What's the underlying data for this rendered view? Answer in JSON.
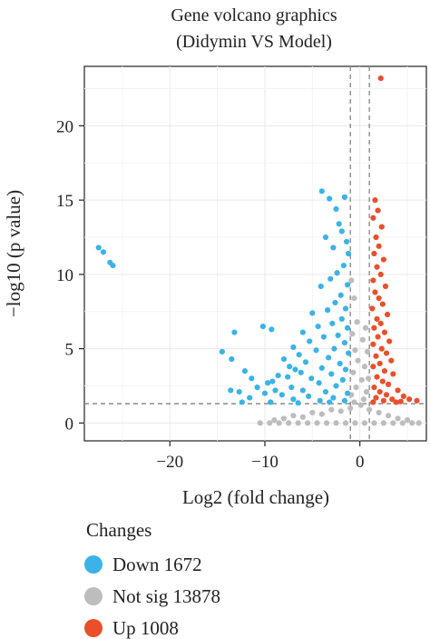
{
  "chart_data": {
    "type": "scatter",
    "title": "Gene volcano graphics",
    "subtitle": "(Didymin VS Model)",
    "xlabel": "Log2 (fold change)",
    "ylabel": "−log10 (p value)",
    "xlim": [
      -29,
      7
    ],
    "ylim": [
      -1.2,
      24
    ],
    "xticks": [
      -20,
      -10,
      0
    ],
    "xtick_labels": [
      "−20",
      "−10",
      "0"
    ],
    "yticks": [
      0,
      5,
      10,
      15,
      20
    ],
    "ytick_labels": [
      "0",
      "5",
      "10",
      "15",
      "20"
    ],
    "grid": true,
    "thresholds": {
      "log2fc": [
        -1,
        1
      ],
      "neg_log10_p": 1.3
    },
    "legend": {
      "title": "Changes",
      "position": "bottom-left",
      "entries": [
        {
          "label": "Down 1672",
          "color": "#3BB3E6"
        },
        {
          "label": "Not sig 13878",
          "color": "#BDBDBD"
        },
        {
          "label": "Up 1008",
          "color": "#E9502A"
        }
      ]
    },
    "series": [
      {
        "name": "Down",
        "color": "#3BB3E6",
        "points": [
          [
            -27.5,
            11.8
          ],
          [
            -27.0,
            11.5
          ],
          [
            -26.3,
            10.8
          ],
          [
            -26.0,
            10.6
          ],
          [
            -10.2,
            6.5
          ],
          [
            -9.3,
            6.3
          ],
          [
            -13.2,
            6.1
          ],
          [
            -14.5,
            4.8
          ],
          [
            -13.5,
            4.3
          ],
          [
            -12.1,
            3.5
          ],
          [
            -11.4,
            3.0
          ],
          [
            -12.7,
            2.1
          ],
          [
            -13.6,
            2.2
          ],
          [
            -10.8,
            2.4
          ],
          [
            -9.7,
            2.7
          ],
          [
            -8.9,
            2.2
          ],
          [
            -7.6,
            3.1
          ],
          [
            -6.8,
            3.6
          ],
          [
            -4.0,
            15.6
          ],
          [
            -1.6,
            15.2
          ],
          [
            -3.2,
            15.1
          ],
          [
            -2.5,
            14.4
          ],
          [
            -2.2,
            13.4
          ],
          [
            -1.9,
            12.9
          ],
          [
            -1.4,
            12.2
          ],
          [
            -3.6,
            12.5
          ],
          [
            -2.8,
            11.8
          ],
          [
            -1.2,
            11.4
          ],
          [
            -1.7,
            10.6
          ],
          [
            -2.4,
            10.1
          ],
          [
            -3.1,
            9.7
          ],
          [
            -1.3,
            9.3
          ],
          [
            -4.1,
            9.2
          ],
          [
            -2.0,
            8.6
          ],
          [
            -2.6,
            8.1
          ],
          [
            -1.5,
            7.7
          ],
          [
            -3.4,
            7.6
          ],
          [
            -5.0,
            7.4
          ],
          [
            -1.9,
            7.0
          ],
          [
            -2.9,
            6.7
          ],
          [
            -4.4,
            6.5
          ],
          [
            -1.3,
            6.4
          ],
          [
            -6.0,
            6.1
          ],
          [
            -2.3,
            5.9
          ],
          [
            -3.8,
            5.8
          ],
          [
            -5.3,
            5.5
          ],
          [
            -1.6,
            5.4
          ],
          [
            -7.0,
            5.1
          ],
          [
            -2.7,
            5.0
          ],
          [
            -4.6,
            4.9
          ],
          [
            -6.4,
            4.6
          ],
          [
            -1.2,
            4.7
          ],
          [
            -3.3,
            4.4
          ],
          [
            -8.0,
            4.3
          ],
          [
            -5.7,
            4.1
          ],
          [
            -2.1,
            4.0
          ],
          [
            -7.4,
            3.8
          ],
          [
            -4.0,
            3.7
          ],
          [
            -1.5,
            3.6
          ],
          [
            -6.2,
            3.4
          ],
          [
            -3.0,
            3.3
          ],
          [
            -8.6,
            3.2
          ],
          [
            -5.1,
            3.0
          ],
          [
            -1.8,
            2.9
          ],
          [
            -9.2,
            2.8
          ],
          [
            -4.3,
            2.7
          ],
          [
            -2.5,
            2.5
          ],
          [
            -7.2,
            2.4
          ],
          [
            -6.0,
            2.2
          ],
          [
            -3.6,
            2.1
          ],
          [
            -1.3,
            2.0
          ],
          [
            -10.0,
            2.0
          ],
          [
            -8.2,
            1.9
          ],
          [
            -5.4,
            1.8
          ],
          [
            -2.8,
            1.7
          ],
          [
            -11.6,
            1.7
          ],
          [
            -7.0,
            1.6
          ],
          [
            -4.2,
            1.5
          ],
          [
            -1.6,
            1.5
          ],
          [
            -9.4,
            1.4
          ],
          [
            -12.4,
            1.4
          ],
          [
            -3.2,
            1.4
          ],
          [
            -6.5,
            1.35
          ]
        ]
      },
      {
        "name": "Not sig",
        "color": "#BDBDBD",
        "points": [
          [
            -0.9,
            9.6
          ],
          [
            -0.6,
            8.4
          ],
          [
            -0.3,
            6.8
          ],
          [
            -0.8,
            6.0
          ],
          [
            0.6,
            6.4
          ],
          [
            0.3,
            5.6
          ],
          [
            -0.5,
            4.9
          ],
          [
            0.8,
            4.8
          ],
          [
            -0.2,
            4.2
          ],
          [
            0.5,
            3.8
          ],
          [
            -0.7,
            3.4
          ],
          [
            0.9,
            3.0
          ],
          [
            0.2,
            2.9
          ],
          [
            -0.4,
            2.4
          ],
          [
            0.7,
            2.1
          ],
          [
            -0.9,
            1.9
          ],
          [
            0.4,
            1.6
          ],
          [
            -0.6,
            1.4
          ],
          [
            0.1,
            1.2
          ],
          [
            -10.5,
            0.0
          ],
          [
            -9.5,
            0.0
          ],
          [
            -8.5,
            0.0
          ],
          [
            -7.5,
            0.0
          ],
          [
            -6.5,
            0.0
          ],
          [
            -5.5,
            0.0
          ],
          [
            -4.5,
            0.0
          ],
          [
            -3.5,
            0.0
          ],
          [
            -2.5,
            0.0
          ],
          [
            -1.5,
            0.0
          ],
          [
            -0.5,
            0.0
          ],
          [
            0.5,
            0.0
          ],
          [
            1.5,
            0.0
          ],
          [
            2.5,
            0.0
          ],
          [
            3.5,
            0.0
          ],
          [
            4.5,
            0.0
          ],
          [
            5.5,
            0.0
          ],
          [
            6.2,
            0.0
          ],
          [
            -8.0,
            0.3
          ],
          [
            -6.0,
            0.4
          ],
          [
            -4.0,
            0.6
          ],
          [
            -2.0,
            0.8
          ],
          [
            -1.0,
            1.0
          ],
          [
            1.0,
            0.9
          ],
          [
            2.0,
            0.7
          ],
          [
            3.0,
            0.5
          ],
          [
            4.0,
            0.3
          ],
          [
            5.0,
            0.2
          ],
          [
            -3.0,
            0.9
          ],
          [
            -5.0,
            0.7
          ],
          [
            -7.0,
            0.5
          ],
          [
            -9.0,
            0.2
          ]
        ]
      },
      {
        "name": "Up",
        "color": "#E9502A",
        "points": [
          [
            2.2,
            23.2
          ],
          [
            1.6,
            15.0
          ],
          [
            1.9,
            14.3
          ],
          [
            1.4,
            13.8
          ],
          [
            2.3,
            13.2
          ],
          [
            1.7,
            12.5
          ],
          [
            2.0,
            11.9
          ],
          [
            1.5,
            11.4
          ],
          [
            2.5,
            11.0
          ],
          [
            1.8,
            10.5
          ],
          [
            2.2,
            10.0
          ],
          [
            1.4,
            9.6
          ],
          [
            2.7,
            9.2
          ],
          [
            1.6,
            8.8
          ],
          [
            2.0,
            8.4
          ],
          [
            2.4,
            8.0
          ],
          [
            1.3,
            7.7
          ],
          [
            2.9,
            7.3
          ],
          [
            1.8,
            7.0
          ],
          [
            2.2,
            6.7
          ],
          [
            1.5,
            6.4
          ],
          [
            2.6,
            6.1
          ],
          [
            1.9,
            5.8
          ],
          [
            3.1,
            5.5
          ],
          [
            1.4,
            5.3
          ],
          [
            2.3,
            5.0
          ],
          [
            2.8,
            4.7
          ],
          [
            1.7,
            4.5
          ],
          [
            3.3,
            4.2
          ],
          [
            2.1,
            4.0
          ],
          [
            1.4,
            3.8
          ],
          [
            2.6,
            3.5
          ],
          [
            3.5,
            3.3
          ],
          [
            1.8,
            3.1
          ],
          [
            2.4,
            2.8
          ],
          [
            3.0,
            2.6
          ],
          [
            1.5,
            2.4
          ],
          [
            4.0,
            2.2
          ],
          [
            2.1,
            2.1
          ],
          [
            2.8,
            1.9
          ],
          [
            4.6,
            1.8
          ],
          [
            1.7,
            1.7
          ],
          [
            3.4,
            1.6
          ],
          [
            5.2,
            1.6
          ],
          [
            2.5,
            1.5
          ],
          [
            4.3,
            1.45
          ],
          [
            6.0,
            1.5
          ],
          [
            1.4,
            1.4
          ],
          [
            3.8,
            1.4
          ]
        ]
      }
    ]
  }
}
